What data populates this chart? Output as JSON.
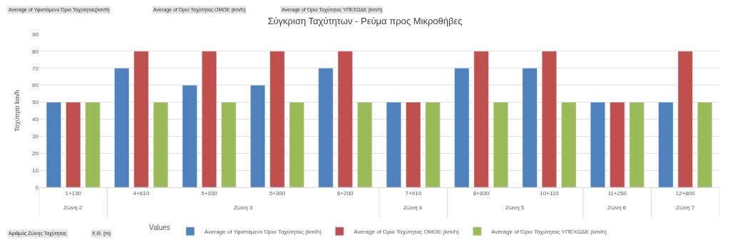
{
  "chart_data": {
    "type": "bar",
    "title": "Σύγκριση Ταχύτητων - Ρεύμα προς Μικροθήβες",
    "ylabel": "Ταχύτητα km/h",
    "legend_title": "Values",
    "categories": [
      "1+130",
      "4+610",
      "5+030",
      "5+300",
      "6+200",
      "7+910",
      "8+830",
      "10+110",
      "11+250",
      "12+800"
    ],
    "series": [
      {
        "name": "Average of Υφιστάμενο Όριο Ταχύτητας (km/h)",
        "color": "#4f81bd",
        "values": [
          50,
          70,
          60,
          60,
          70,
          50,
          70,
          70,
          50,
          50
        ]
      },
      {
        "name": "Average of Όριο Ταχύτητας ΟΜΟΕ (km/h)",
        "color": "#c0504d",
        "values": [
          50,
          80,
          80,
          80,
          80,
          50,
          80,
          80,
          50,
          80
        ]
      },
      {
        "name": "Average of Όριο Ταχύτητας ΥΠΕΧΩΔΕ (km/h)",
        "color": "#9bbb59",
        "values": [
          50,
          50,
          50,
          50,
          50,
          50,
          50,
          50,
          50,
          50
        ]
      }
    ],
    "ylim": [
      0,
      90
    ],
    "yticks": [
      0,
      10,
      20,
      30,
      40,
      50,
      60,
      70,
      80,
      90
    ],
    "grid": "y",
    "legend": "bottom",
    "annotations": [
      "Average of Υφιστάμενο Όριο Ταχύτητας(km/h)",
      "Average of Όριο Ταχύτητας ΟΜΟΕ (km/h)",
      "Average of Όριο Ταχύτητας ΥΠΕΧΩΔΕ (km/h)",
      "Αριθμός Ζώνης Ταχύτητας",
      "Χ.Θ. (m)",
      "Ζώνη 2",
      "Ζώνη 3",
      "Ζώνη 4",
      "Ζώνη 5",
      "Ζώνη 6",
      "Ζώνη 7"
    ]
  }
}
